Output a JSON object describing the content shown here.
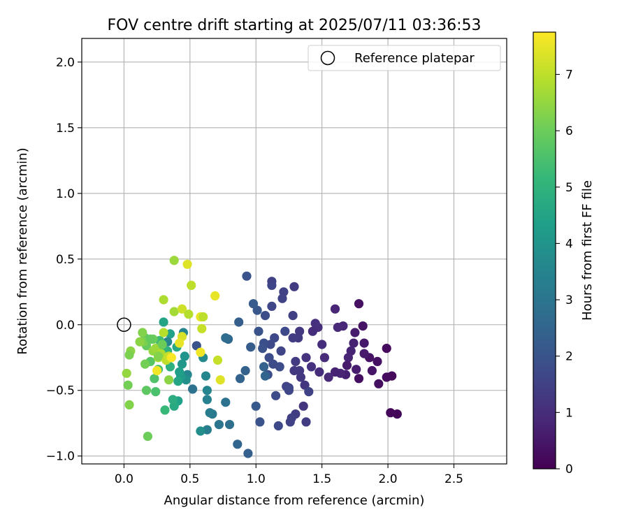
{
  "chart_data": {
    "type": "scatter",
    "title": "FOV centre drift starting at 2025/07/11 03:36:53",
    "xlabel": "Angular distance from reference (arcmin)",
    "ylabel": "Rotation from reference (arcmin)",
    "xlim": [
      -0.32,
      2.9
    ],
    "ylim": [
      -1.06,
      2.18
    ],
    "x_ticks": [
      0.0,
      0.5,
      1.0,
      1.5,
      2.0,
      2.5
    ],
    "y_ticks": [
      -1.0,
      -0.5,
      0.0,
      0.5,
      1.0,
      1.5,
      2.0
    ],
    "x_tick_labels": [
      "0.0",
      "0.5",
      "1.0",
      "1.5",
      "2.0",
      "2.5"
    ],
    "y_tick_labels": [
      "−1.0",
      "−0.5",
      "0.0",
      "0.5",
      "1.0",
      "1.5",
      "2.0"
    ],
    "grid": true,
    "legend": {
      "placement": "upper-right",
      "label": "Reference platepar"
    },
    "reference_point": {
      "x": 0.0,
      "y": 0.0
    },
    "colorbar": {
      "label": "Hours from first FF file",
      "range": [
        0,
        7.75
      ],
      "ticks": [
        0,
        1,
        2,
        3,
        4,
        5,
        6,
        7
      ],
      "tick_labels": [
        "0",
        "1",
        "2",
        "3",
        "4",
        "5",
        "6",
        "7"
      ],
      "colormap": "viridis"
    },
    "points": [
      [
        2.07,
        -0.68,
        0.1
      ],
      [
        2.02,
        -0.67,
        0.15
      ],
      [
        2.03,
        -0.39,
        0.2
      ],
      [
        1.99,
        -0.4,
        0.25
      ],
      [
        1.93,
        -0.45,
        0.3
      ],
      [
        1.99,
        -0.18,
        0.2
      ],
      [
        1.92,
        -0.28,
        0.35
      ],
      [
        1.86,
        -0.25,
        0.4
      ],
      [
        1.88,
        -0.35,
        0.45
      ],
      [
        1.82,
        -0.14,
        0.5
      ],
      [
        1.78,
        -0.41,
        0.3
      ],
      [
        1.78,
        0.16,
        0.35
      ],
      [
        1.81,
        -0.01,
        0.4
      ],
      [
        1.82,
        -0.22,
        0.55
      ],
      [
        1.75,
        -0.06,
        0.6
      ],
      [
        1.76,
        -0.34,
        0.65
      ],
      [
        1.74,
        -0.14,
        0.7
      ],
      [
        1.72,
        -0.2,
        0.75
      ],
      [
        1.7,
        -0.25,
        0.8
      ],
      [
        1.69,
        -0.31,
        0.6
      ],
      [
        1.68,
        -0.38,
        0.7
      ],
      [
        1.64,
        -0.37,
        0.8
      ],
      [
        1.6,
        -0.36,
        0.75
      ],
      [
        1.66,
        -0.01,
        0.85
      ],
      [
        1.62,
        -0.02,
        0.9
      ],
      [
        1.6,
        0.12,
        0.8
      ],
      [
        1.55,
        -0.4,
        0.9
      ],
      [
        1.52,
        -0.25,
        0.95
      ],
      [
        1.5,
        -0.15,
        1.0
      ],
      [
        1.48,
        -0.36,
        1.0
      ],
      [
        1.47,
        -0.02,
        1.05
      ],
      [
        1.45,
        0.01,
        1.1
      ],
      [
        1.43,
        -0.05,
        1.0
      ],
      [
        1.42,
        -0.32,
        1.1
      ],
      [
        1.38,
        -0.25,
        1.15
      ],
      [
        1.36,
        -0.62,
        1.2
      ],
      [
        1.37,
        -0.46,
        1.2
      ],
      [
        1.34,
        -0.4,
        1.25
      ],
      [
        1.33,
        -0.05,
        1.3
      ],
      [
        1.32,
        -0.1,
        1.35
      ],
      [
        1.33,
        -0.35,
        1.3
      ],
      [
        1.3,
        -0.28,
        1.35
      ],
      [
        1.28,
        -0.1,
        1.4
      ],
      [
        1.28,
        0.07,
        1.45
      ],
      [
        1.29,
        -0.35,
        1.3
      ],
      [
        1.3,
        -0.68,
        1.4
      ],
      [
        1.27,
        -0.71,
        1.45
      ],
      [
        1.26,
        -0.74,
        1.5
      ],
      [
        1.29,
        0.29,
        1.35
      ],
      [
        1.38,
        -0.74,
        1.4
      ],
      [
        1.4,
        -0.51,
        1.5
      ],
      [
        1.25,
        -0.48,
        1.6
      ],
      [
        1.23,
        -0.47,
        1.55
      ],
      [
        1.21,
        0.25,
        1.5
      ],
      [
        1.2,
        0.2,
        1.55
      ],
      [
        1.19,
        -0.2,
        1.6
      ],
      [
        1.17,
        -0.77,
        1.7
      ],
      [
        1.15,
        -0.54,
        1.75
      ],
      [
        1.14,
        -0.1,
        1.7
      ],
      [
        1.13,
        -0.3,
        1.75
      ],
      [
        1.12,
        0.33,
        1.5
      ],
      [
        1.12,
        0.3,
        1.6
      ],
      [
        1.12,
        0.14,
        1.65
      ],
      [
        1.11,
        -0.15,
        1.7
      ],
      [
        1.1,
        -0.25,
        1.8
      ],
      [
        1.09,
        -0.38,
        1.85
      ],
      [
        1.07,
        0.07,
        1.8
      ],
      [
        1.06,
        -0.14,
        1.9
      ],
      [
        1.05,
        -0.18,
        1.95
      ],
      [
        1.03,
        -0.74,
        2.0
      ],
      [
        1.02,
        -0.05,
        2.0
      ],
      [
        1.01,
        0.11,
        2.1
      ],
      [
        1.0,
        -0.62,
        2.15
      ],
      [
        0.98,
        0.16,
        2.2
      ],
      [
        0.96,
        -0.17,
        2.25
      ],
      [
        0.94,
        -0.98,
        2.35
      ],
      [
        0.93,
        0.37,
        2.0
      ],
      [
        0.92,
        -0.35,
        2.4
      ],
      [
        0.88,
        -0.41,
        2.45
      ],
      [
        0.87,
        0.02,
        2.3
      ],
      [
        0.86,
        -0.91,
        2.5
      ],
      [
        1.22,
        -0.05,
        1.7
      ],
      [
        1.25,
        -0.5,
        1.65
      ],
      [
        1.18,
        -0.32,
        1.8
      ],
      [
        1.06,
        -0.32,
        2.4
      ],
      [
        1.07,
        -0.39,
        2.5
      ],
      [
        0.79,
        -0.11,
        2.6
      ],
      [
        0.77,
        -0.1,
        2.7
      ],
      [
        0.8,
        -0.76,
        2.8
      ],
      [
        0.77,
        -0.59,
        2.9
      ],
      [
        0.72,
        -0.76,
        3.0
      ],
      [
        0.67,
        -0.68,
        3.1
      ],
      [
        0.65,
        -0.67,
        3.2
      ],
      [
        0.63,
        -0.8,
        3.3
      ],
      [
        0.63,
        -0.57,
        3.4
      ],
      [
        0.63,
        -0.5,
        3.5
      ],
      [
        0.62,
        -0.39,
        3.6
      ],
      [
        0.6,
        -0.25,
        3.7
      ],
      [
        0.58,
        -0.81,
        3.8
      ],
      [
        0.55,
        -0.16,
        2.0
      ],
      [
        0.52,
        -0.49,
        2.9
      ],
      [
        0.48,
        -0.38,
        3.6
      ],
      [
        0.47,
        -0.42,
        3.9
      ],
      [
        0.46,
        -0.24,
        4.0
      ],
      [
        0.45,
        -0.06,
        3.5
      ],
      [
        0.44,
        -0.3,
        4.1
      ],
      [
        0.43,
        -0.39,
        4.2
      ],
      [
        0.42,
        -0.36,
        4.3
      ],
      [
        0.41,
        -0.58,
        4.4
      ],
      [
        0.41,
        -0.43,
        4.5
      ],
      [
        0.4,
        -0.17,
        4.6
      ],
      [
        0.38,
        -0.62,
        4.7
      ],
      [
        0.37,
        -0.57,
        4.8
      ],
      [
        0.35,
        -0.07,
        4.4
      ],
      [
        0.35,
        -0.32,
        4.9
      ],
      [
        0.33,
        -0.13,
        3.5
      ],
      [
        0.33,
        -0.2,
        5.0
      ],
      [
        0.31,
        -0.65,
        5.2
      ],
      [
        0.3,
        0.02,
        4.5
      ],
      [
        0.29,
        -0.18,
        5.1
      ],
      [
        0.27,
        -0.12,
        5.3
      ],
      [
        0.26,
        -0.34,
        5.4
      ],
      [
        0.24,
        -0.51,
        5.5
      ],
      [
        0.23,
        -0.41,
        5.6
      ],
      [
        0.2,
        -0.28,
        5.7
      ],
      [
        0.17,
        -0.5,
        5.8
      ],
      [
        0.18,
        -0.85,
        6.0
      ],
      [
        0.17,
        -0.16,
        5.9
      ],
      [
        0.16,
        -0.1,
        5.8
      ],
      [
        0.16,
        -0.3,
        6.1
      ],
      [
        0.15,
        -0.13,
        6.2
      ],
      [
        0.14,
        -0.06,
        6.3
      ],
      [
        0.05,
        -0.2,
        6.4
      ],
      [
        0.04,
        -0.23,
        6.2
      ],
      [
        0.04,
        -0.61,
        6.3
      ],
      [
        0.03,
        -0.46,
        6.1
      ],
      [
        0.02,
        -0.37,
        6.5
      ],
      [
        0.22,
        -0.2,
        6.5
      ],
      [
        0.24,
        -0.18,
        6.6
      ],
      [
        0.26,
        -0.25,
        6.7
      ],
      [
        0.28,
        -0.22,
        6.8
      ],
      [
        0.3,
        -0.06,
        6.9
      ],
      [
        0.32,
        -0.27,
        7.0
      ],
      [
        0.34,
        -0.24,
        7.1
      ],
      [
        0.38,
        0.49,
        6.6
      ],
      [
        0.38,
        0.1,
        6.7
      ],
      [
        0.3,
        0.19,
        6.8
      ],
      [
        0.44,
        -0.09,
        7.3
      ],
      [
        0.44,
        0.12,
        7.2
      ],
      [
        0.48,
        0.46,
        7.4
      ],
      [
        0.49,
        0.08,
        6.9
      ],
      [
        0.51,
        0.3,
        7.0
      ],
      [
        0.58,
        0.06,
        7.5
      ],
      [
        0.59,
        -0.03,
        7.1
      ],
      [
        0.6,
        0.06,
        7.0
      ],
      [
        0.58,
        -0.21,
        7.6
      ],
      [
        0.69,
        0.22,
        7.5
      ],
      [
        0.71,
        -0.27,
        7.1
      ],
      [
        0.73,
        -0.42,
        7.4
      ],
      [
        0.22,
        -0.11,
        6.0
      ],
      [
        0.34,
        -0.42,
        6.4
      ],
      [
        0.2,
        -0.11,
        5.9
      ],
      [
        0.26,
        -0.24,
        6.3
      ],
      [
        0.36,
        -0.25,
        7.7
      ],
      [
        0.42,
        -0.14,
        7.5
      ],
      [
        0.12,
        -0.13,
        6.4
      ],
      [
        0.25,
        -0.35,
        7.6
      ],
      [
        0.29,
        -0.15,
        6.0
      ]
    ]
  }
}
